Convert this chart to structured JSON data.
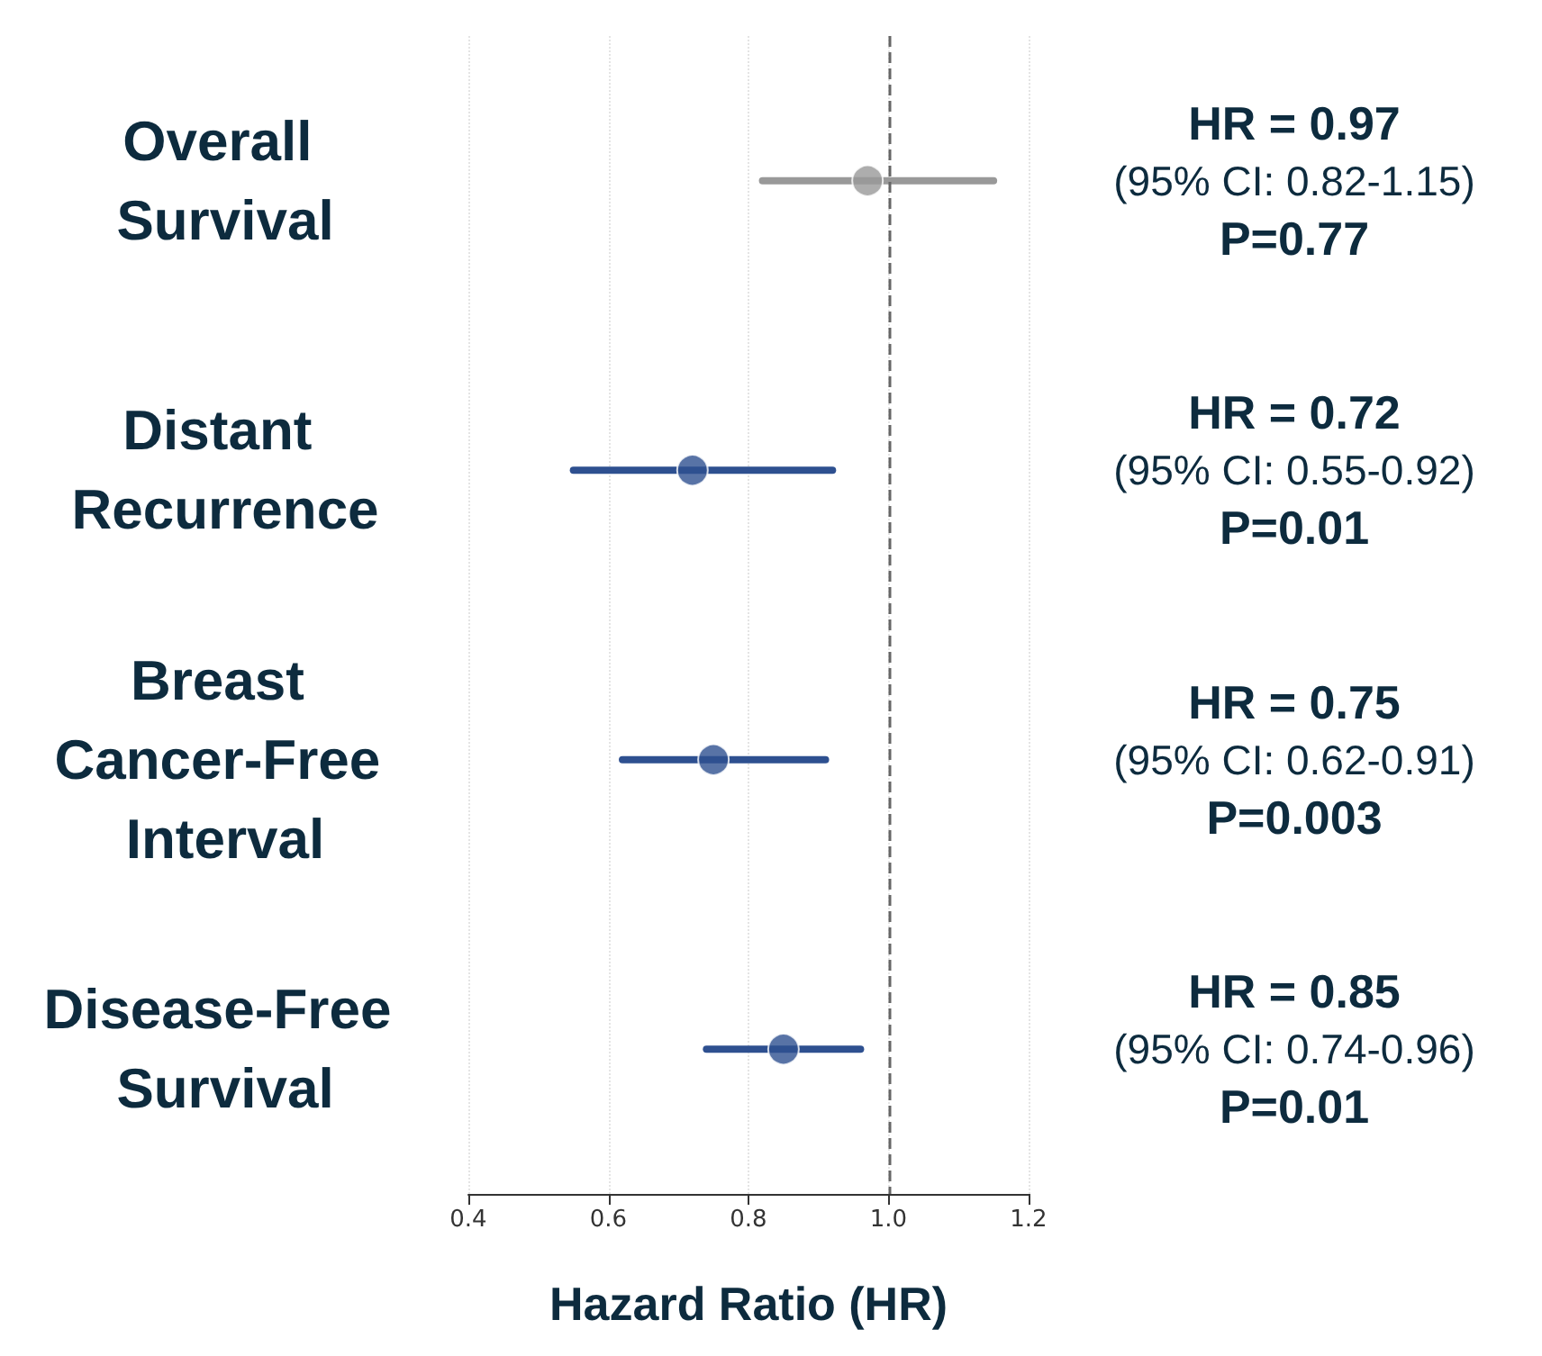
{
  "chart_data": {
    "type": "scatter",
    "orientation": "horizontal",
    "xlabel": "Hazard Ratio (HR)",
    "categories": [
      "Overall Survival",
      "Distant Recurrence",
      "Breast Cancer-Free Interval",
      "Disease-Free Survival"
    ],
    "values": [
      0.97,
      0.72,
      0.75,
      0.85
    ],
    "errors": [
      [
        0.82,
        1.15
      ],
      [
        0.55,
        0.92
      ],
      [
        0.62,
        0.91
      ],
      [
        0.74,
        0.96
      ]
    ],
    "colors": [
      "#999999",
      "#2e5090",
      "#2e5090",
      "#2e5090"
    ],
    "xlim": [
      0.4,
      1.2
    ],
    "xticks": [
      {
        "value": 0.4,
        "label": "0.4"
      },
      {
        "value": 0.6,
        "label": "0.6"
      },
      {
        "value": 0.8,
        "label": "0.8"
      },
      {
        "value": 1.0,
        "label": "1.0"
      },
      {
        "value": 1.2,
        "label": "1.2"
      }
    ],
    "grid": "x",
    "marker": "circle",
    "ref_lines": [
      {
        "axis": "x",
        "value": 1.0,
        "color": "#666666",
        "line_style": "dashed"
      }
    ],
    "annotations": [
      "HR = 0.97",
      "(95% CI: 0.82-1.15)",
      "P=0.77",
      "HR = 0.72",
      "(95% CI: 0.55-0.92)",
      "P=0.01",
      "HR = 0.75",
      "(95% CI: 0.62-0.91)",
      "P=0.003",
      "HR = 0.85",
      "(95% CI: 0.74-0.96)",
      "P=0.01"
    ]
  }
}
